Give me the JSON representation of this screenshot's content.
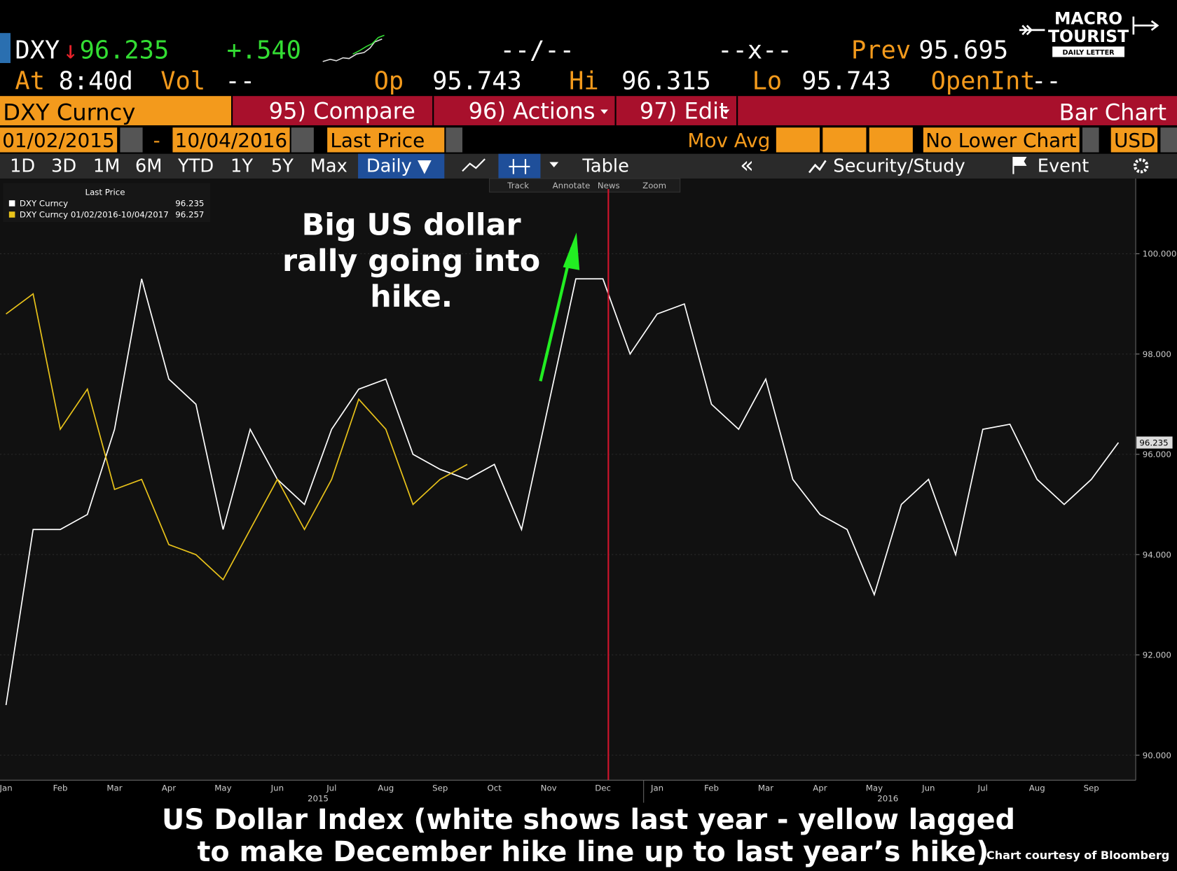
{
  "header": {
    "ticker": "DXY",
    "direction": "↓",
    "last": "96.235",
    "change": "+.540",
    "bid_ask": "--/--",
    "size": "--x--",
    "prev_label": "Prev",
    "prev": "95.695"
  },
  "stats": {
    "at_label": "At",
    "time": "8:40d",
    "vol_label": "Vol",
    "vol": "--",
    "op_label": "Op",
    "op": "95.743",
    "hi_label": "Hi",
    "hi": "96.315",
    "lo_label": "Lo",
    "lo": "95.743",
    "oi_label": "OpenInt",
    "oi": "--"
  },
  "menu": {
    "security": "DXY Curncy",
    "compare": "95) Compare",
    "actions": "96) Actions",
    "edit": "97) Edit",
    "chart_type": "Bar Chart"
  },
  "settings": {
    "start": "01/02/2015",
    "sep": "-",
    "end": "10/04/2016",
    "field": "Last Price",
    "study": "Mov Avg",
    "lower": "No Lower Chart",
    "currency": "USD"
  },
  "periods": [
    "1D",
    "3D",
    "1M",
    "6M",
    "YTD",
    "1Y",
    "5Y",
    "Max"
  ],
  "toolbar": {
    "frequency": "Daily ▼",
    "table": "Table",
    "collapse": "«",
    "study": "Security/Study",
    "event": "Event"
  },
  "tools": [
    "Track",
    "Annotate",
    "News",
    "Zoom"
  ],
  "logo": {
    "line1": "MACRO",
    "line2": "TOURIST",
    "line3": "DAILY LETTER"
  },
  "chart_data": {
    "type": "line",
    "legend_title": "Last Price",
    "categories": [
      "Jan",
      null,
      "Feb",
      null,
      "Mar",
      null,
      "Apr",
      null,
      "May",
      null,
      "Jun",
      null,
      "Jul",
      null,
      "Aug",
      null,
      "Sep",
      null,
      "Oct",
      null,
      "Nov",
      null,
      "Dec",
      null,
      "Jan",
      null,
      "Feb",
      null,
      "Mar",
      null,
      "Apr",
      null,
      "May",
      null,
      "Jun",
      null,
      "Jul",
      null,
      "Aug",
      null,
      "Sep",
      null
    ],
    "x_groups": [
      {
        "label": "2015",
        "from": 0,
        "to": 23
      },
      {
        "label": "2016",
        "from": 24,
        "to": 41
      }
    ],
    "series": [
      {
        "name": "DXY Curncy",
        "color": "#ffffff",
        "values": [
          91.0,
          94.5,
          94.5,
          94.8,
          96.5,
          99.5,
          97.5,
          97.0,
          94.5,
          96.5,
          95.5,
          95.0,
          96.5,
          97.3,
          97.5,
          96.0,
          95.7,
          95.5,
          95.8,
          94.5,
          97.0,
          99.5,
          99.5,
          98.0,
          98.8,
          99.0,
          97.0,
          96.5,
          97.5,
          95.5,
          94.8,
          94.5,
          93.2,
          95.0,
          95.5,
          94.0,
          96.5,
          96.6,
          95.5,
          95.0,
          95.5,
          96.235
        ]
      },
      {
        "name": "DXY Curncy 01/02/2016-10/04/2017",
        "color": "#e8c21a",
        "last": 96.257,
        "values": [
          98.8,
          99.2,
          96.5,
          97.3,
          95.3,
          95.5,
          94.2,
          94.0,
          93.5,
          94.5,
          95.5,
          94.5,
          95.5,
          97.1,
          96.5,
          95.0,
          95.5,
          95.8,
          null,
          null,
          null,
          null,
          null,
          null,
          null,
          null,
          null,
          null,
          null,
          null,
          null,
          null,
          null,
          null,
          null,
          null,
          null,
          null,
          null,
          null,
          null,
          null
        ]
      }
    ],
    "ylim": [
      89.5,
      101.5
    ],
    "yticks": [
      {
        "value": 90,
        "label": "90.000"
      },
      {
        "value": 92,
        "label": "92.000"
      },
      {
        "value": 94,
        "label": "94.000"
      },
      {
        "value": 96,
        "label": "96.000"
      },
      {
        "value": 98,
        "label": "98.000"
      },
      {
        "value": 100,
        "label": "100.000"
      }
    ],
    "grid": true,
    "event_line": {
      "index": 22,
      "color": "#d0142c"
    },
    "annotation": [
      "Big US dollar",
      "rally going into",
      "hike."
    ],
    "annotation_color": "#22ee22"
  },
  "caption": {
    "line1": "US Dollar Index (white shows last year - yellow lagged",
    "line2": "to make December hike line up to last year’s hike)",
    "credit": "Chart courtesy of Bloomberg"
  }
}
